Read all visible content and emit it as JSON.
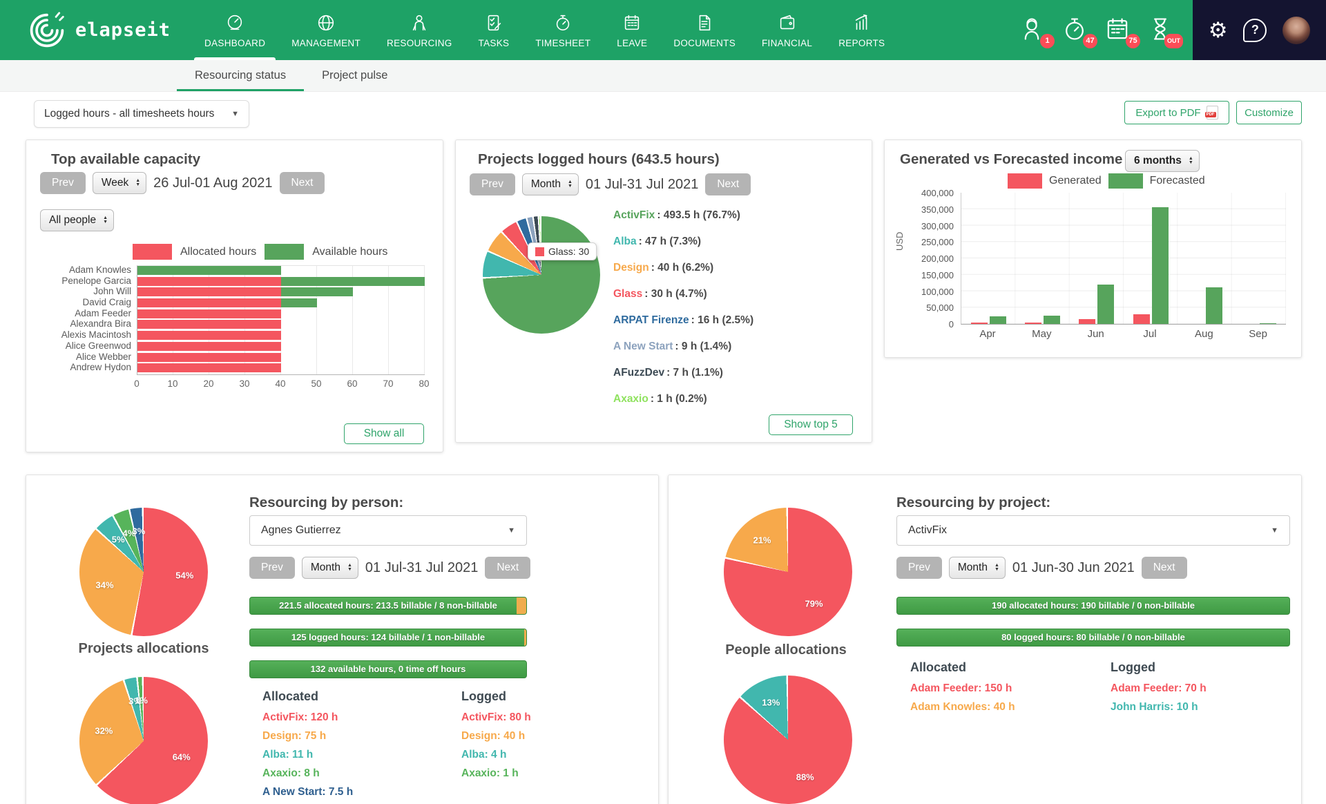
{
  "colors": {
    "nav_green": "#1EA266",
    "nav_dark": "#141430",
    "badge_red": "#FB4D57",
    "chart_red": "#F4565F",
    "chart_green": "#57A45C",
    "chart_orange": "#F7A94B",
    "chart_teal": "#41B7AE",
    "chart_blue": "#2F6B9E",
    "chart_slate": "#8DA3BE",
    "chart_dark": "#3C4A54",
    "chart_lightgreen": "#8FE25E",
    "bar_green": "#46A04A",
    "bar_orange": "#F0AD4E",
    "accent_green": "#2FA46A"
  },
  "nav": {
    "brand": "elapseit",
    "items": [
      {
        "label": "DASHBOARD",
        "icon": "gauge",
        "active": true
      },
      {
        "label": "MANAGEMENT",
        "icon": "globe",
        "active": false
      },
      {
        "label": "RESOURCING",
        "icon": "person-reading",
        "active": false
      },
      {
        "label": "TASKS",
        "icon": "checklist",
        "active": false
      },
      {
        "label": "TIMESHEET",
        "icon": "stopwatch",
        "active": false
      },
      {
        "label": "LEAVE",
        "icon": "calendar",
        "active": false
      },
      {
        "label": "DOCUMENTS",
        "icon": "document",
        "active": false
      },
      {
        "label": "FINANCIAL",
        "icon": "wallet",
        "active": false
      },
      {
        "label": "REPORTS",
        "icon": "chart-growth",
        "active": false
      }
    ],
    "status": [
      {
        "icon": "worker",
        "badge": "1"
      },
      {
        "icon": "stopwatch",
        "badge": "47"
      },
      {
        "icon": "calendar-sheet",
        "badge": "75"
      },
      {
        "icon": "hourglass",
        "badge": "OUT"
      }
    ]
  },
  "subtabs": {
    "items": [
      {
        "label": "Resourcing status",
        "active": true
      },
      {
        "label": "Project pulse",
        "active": false
      }
    ]
  },
  "toolbar": {
    "filter_value": "Logged hours - all timesheets hours",
    "export_label": "Export to PDF",
    "customize_label": "Customize"
  },
  "capacity_card": {
    "title": "Top available capacity",
    "prev": "Prev",
    "next": "Next",
    "period": "Week",
    "date_range": "26 Jul-01 Aug 2021",
    "people_filter": "All people",
    "legend": [
      {
        "label": "Allocated hours",
        "color": "#F4565F"
      },
      {
        "label": "Available hours",
        "color": "#57A45C"
      }
    ],
    "show_all": "Show all"
  },
  "logged_card": {
    "title": "Projects logged hours (643.5 hours)",
    "prev": "Prev",
    "next": "Next",
    "period": "Month",
    "date_range": "01 Jul-31 Jul 2021",
    "tooltip": {
      "text": "Glass: 30",
      "color": "#F4565F"
    },
    "show_top": "Show top 5"
  },
  "income_card": {
    "title": "Generated vs Forecasted income",
    "range": "6 months",
    "legend": [
      {
        "label": "Generated",
        "color": "#F4565F"
      },
      {
        "label": "Forecasted",
        "color": "#57A45C"
      }
    ]
  },
  "person_card": {
    "title": "Resourcing by person:",
    "person": "Agnes Gutierrez",
    "prev": "Prev",
    "next": "Next",
    "period": "Month",
    "date_range": "01 Jul-31 Jul 2021",
    "bars": [
      {
        "text": "221.5 allocated hours: 213.5 billable / 8 non-billable",
        "billable_pct": 96.4
      },
      {
        "text": "125 logged hours: 124 billable / 1 non-billable",
        "billable_pct": 99.2
      },
      {
        "text": "132 available hours, 0 time off hours",
        "billable_pct": 100
      }
    ],
    "pie_label": "Projects allocations",
    "allocated_title": "Allocated",
    "logged_title": "Logged",
    "allocated": [
      {
        "name": "ActivFix",
        "value": "120 h",
        "color": "#F4565F"
      },
      {
        "name": "Design",
        "value": "75 h",
        "color": "#F7A94B"
      },
      {
        "name": "Alba",
        "value": "11 h",
        "color": "#41B7AE"
      },
      {
        "name": "Axaxio",
        "value": "8 h",
        "color": "#57B45B"
      },
      {
        "name": "A New Start",
        "value": "7.5 h",
        "color": "#2F5F8F"
      }
    ],
    "logged": [
      {
        "name": "ActivFix",
        "value": "80 h",
        "color": "#F4565F"
      },
      {
        "name": "Design",
        "value": "40 h",
        "color": "#F7A94B"
      },
      {
        "name": "Alba",
        "value": "4 h",
        "color": "#41B7AE"
      },
      {
        "name": "Axaxio",
        "value": "1 h",
        "color": "#57B45B"
      }
    ]
  },
  "project_card": {
    "title": "Resourcing by project:",
    "project": "ActivFix",
    "prev": "Prev",
    "next": "Next",
    "period": "Month",
    "date_range": "01 Jun-30 Jun 2021",
    "bars": [
      {
        "text": "190 allocated hours: 190 billable / 0 non-billable",
        "billable_pct": 100
      },
      {
        "text": "80 logged hours: 80 billable / 0 non-billable",
        "billable_pct": 100
      }
    ],
    "pie_label": "People allocations",
    "allocated_title": "Allocated",
    "logged_title": "Logged",
    "allocated": [
      {
        "name": "Adam Feeder",
        "value": "150 h",
        "color": "#F4565F"
      },
      {
        "name": "Adam Knowles",
        "value": "40 h",
        "color": "#F7A94B"
      }
    ],
    "logged": [
      {
        "name": "Adam Feeder",
        "value": "70 h",
        "color": "#F4565F"
      },
      {
        "name": "John Harris",
        "value": "10 h",
        "color": "#41B7AE"
      }
    ]
  },
  "chart_data": [
    {
      "id": "capacity",
      "type": "bar",
      "orientation": "horizontal",
      "title": "Top available capacity",
      "categories": [
        "Adam Knowles",
        "Penelope Garcia",
        "John Will",
        "David Craig",
        "Adam Feeder",
        "Alexandra Bira",
        "Alexis Macintosh",
        "Alice Greenwod",
        "Alice Webber",
        "Andrew Hydon"
      ],
      "series": [
        {
          "name": "Allocated hours",
          "color": "#F4565F",
          "values": [
            0,
            40,
            40,
            40,
            40,
            40,
            40,
            40,
            40,
            40
          ]
        },
        {
          "name": "Available hours",
          "color": "#57A45C",
          "values": [
            40,
            40,
            20,
            10,
            0,
            0,
            0,
            0,
            0,
            0
          ]
        }
      ],
      "xlim": [
        0,
        80
      ],
      "xticks": [
        0,
        10,
        20,
        30,
        40,
        50,
        60,
        70,
        80
      ],
      "grid": true,
      "legend_position": "top"
    },
    {
      "id": "logged_pie",
      "type": "pie",
      "title": "Projects logged hours (643.5 hours)",
      "slices": [
        {
          "label": "ActivFix",
          "value": 493.5,
          "pct": 76.7,
          "color": "#57A45C"
        },
        {
          "label": "Alba",
          "value": 47,
          "pct": 7.3,
          "color": "#41B7AE"
        },
        {
          "label": "Design",
          "value": 40,
          "pct": 6.2,
          "color": "#F7A94B"
        },
        {
          "label": "Glass",
          "value": 30,
          "pct": 4.7,
          "color": "#F4565F"
        },
        {
          "label": "ARPAT Firenze",
          "value": 16,
          "pct": 2.5,
          "color": "#2F6B9E"
        },
        {
          "label": "A New Start",
          "value": 9,
          "pct": 1.4,
          "color": "#8DA3BE"
        },
        {
          "label": "AFuzzDev",
          "value": 7,
          "pct": 1.1,
          "color": "#3C4A54"
        },
        {
          "label": "Axaxio",
          "value": 1,
          "pct": 0.2,
          "color": "#8FE25E"
        }
      ],
      "unit": "h"
    },
    {
      "id": "income",
      "type": "bar",
      "title": "Generated vs Forecasted income",
      "categories": [
        "Apr",
        "May",
        "Jun",
        "Jul",
        "Aug",
        "Sep"
      ],
      "series": [
        {
          "name": "Generated",
          "color": "#F4565F",
          "values": [
            4500,
            4000,
            14500,
            29000,
            0,
            0
          ]
        },
        {
          "name": "Forecasted",
          "color": "#57A45C",
          "values": [
            23000,
            26000,
            120000,
            355000,
            112000,
            2500
          ]
        }
      ],
      "ylim": [
        0,
        400000
      ],
      "yticks": [
        "400,000",
        "350,000",
        "300,000",
        "250,000",
        "200,000",
        "150,000",
        "100,000",
        "50,000",
        "0"
      ],
      "ylabel": "USD",
      "grid": true,
      "legend_position": "top"
    },
    {
      "id": "person_alloc_pie",
      "type": "pie",
      "slices": [
        {
          "label": "54%",
          "value": 54,
          "color": "#F4565F"
        },
        {
          "label": "34%",
          "value": 34,
          "color": "#F7A94B"
        },
        {
          "label": "5%",
          "value": 5,
          "color": "#41B7AE"
        },
        {
          "label": "4%",
          "value": 4,
          "color": "#57B45B"
        },
        {
          "label": "3%",
          "value": 3,
          "color": "#2F6B9E"
        }
      ]
    },
    {
      "id": "person_logged_pie",
      "type": "pie",
      "slices": [
        {
          "label": "64%",
          "value": 64,
          "color": "#F4565F"
        },
        {
          "label": "32%",
          "value": 32,
          "color": "#F7A94B"
        },
        {
          "label": "3%",
          "value": 3,
          "color": "#41B7AE"
        },
        {
          "label": "1%",
          "value": 1,
          "color": "#57B45B"
        }
      ]
    },
    {
      "id": "project_alloc_pie",
      "type": "pie",
      "slices": [
        {
          "label": "79%",
          "value": 79,
          "color": "#F4565F"
        },
        {
          "label": "21%",
          "value": 21,
          "color": "#F7A94B"
        }
      ]
    },
    {
      "id": "project_logged_pie",
      "type": "pie",
      "slices": [
        {
          "label": "88%",
          "value": 88,
          "color": "#F4565F"
        },
        {
          "label": "13%",
          "value": 13,
          "color": "#41B7AE"
        }
      ]
    }
  ]
}
